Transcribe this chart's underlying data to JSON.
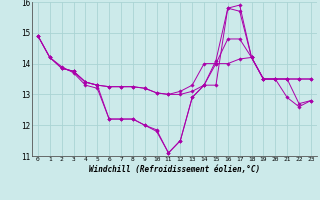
{
  "title": "",
  "xlabel": "Windchill (Refroidissement éolien,°C)",
  "ylabel": "",
  "bg_color": "#cceaea",
  "grid_color": "#aad4d4",
  "line_color": "#aa00aa",
  "xlim": [
    -0.5,
    23.5
  ],
  "ylim": [
    11,
    16
  ],
  "yticks": [
    11,
    12,
    13,
    14,
    15,
    16
  ],
  "xticks": [
    0,
    1,
    2,
    3,
    4,
    5,
    6,
    7,
    8,
    9,
    10,
    11,
    12,
    13,
    14,
    15,
    16,
    17,
    18,
    19,
    20,
    21,
    22,
    23
  ],
  "lines": [
    {
      "x": [
        0,
        1,
        2,
        3,
        4,
        5,
        6,
        7,
        8,
        9,
        10,
        11,
        12,
        13,
        14,
        15,
        16,
        17,
        18,
        19,
        20,
        21,
        22,
        23
      ],
      "y": [
        14.9,
        14.2,
        13.9,
        13.7,
        13.3,
        13.2,
        12.2,
        12.2,
        12.2,
        12.0,
        11.8,
        11.1,
        11.5,
        12.9,
        13.3,
        14.1,
        15.8,
        15.7,
        14.2,
        13.5,
        13.5,
        12.9,
        12.6,
        12.8
      ]
    },
    {
      "x": [
        0,
        1,
        2,
        3,
        4,
        5,
        6,
        7,
        8,
        9,
        10,
        11,
        12,
        13,
        14,
        15,
        16,
        17,
        18,
        19,
        20,
        21,
        22,
        23
      ],
      "y": [
        14.9,
        14.2,
        13.85,
        13.75,
        13.4,
        13.3,
        13.25,
        13.25,
        13.25,
        13.2,
        13.05,
        13.0,
        13.0,
        13.1,
        13.3,
        14.0,
        14.8,
        14.8,
        14.2,
        13.5,
        13.5,
        13.5,
        13.5,
        13.5
      ]
    },
    {
      "x": [
        0,
        1,
        2,
        3,
        4,
        5,
        6,
        7,
        8,
        9,
        10,
        11,
        12,
        13,
        14,
        15,
        16,
        17,
        18,
        19,
        20,
        21,
        22,
        23
      ],
      "y": [
        14.9,
        14.2,
        13.85,
        13.75,
        13.4,
        13.3,
        13.25,
        13.25,
        13.25,
        13.2,
        13.05,
        13.0,
        13.1,
        13.3,
        14.0,
        14.0,
        14.0,
        14.15,
        14.2,
        13.5,
        13.5,
        13.5,
        13.5,
        13.5
      ]
    },
    {
      "x": [
        2,
        3,
        4,
        5,
        6,
        7,
        8,
        9,
        10,
        11,
        12,
        13,
        14,
        15,
        16,
        17,
        18,
        19,
        20,
        21,
        22,
        23
      ],
      "y": [
        13.85,
        13.75,
        13.4,
        13.3,
        12.2,
        12.2,
        12.2,
        12.0,
        11.85,
        11.1,
        11.5,
        12.9,
        13.3,
        13.3,
        15.8,
        15.9,
        14.2,
        13.5,
        13.5,
        13.5,
        12.7,
        12.8
      ]
    }
  ]
}
